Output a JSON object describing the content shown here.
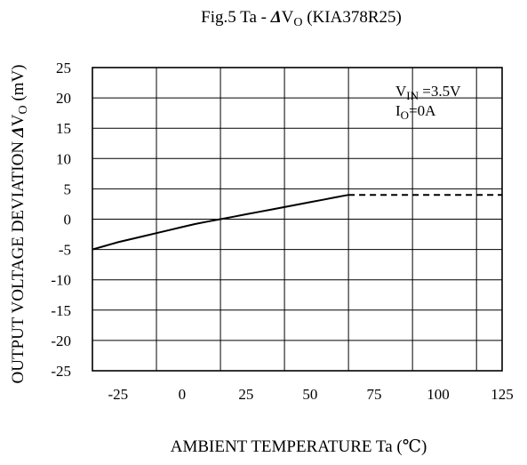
{
  "chart_data": {
    "type": "line",
    "title": {
      "prefix": "Fig.5  Ta - ",
      "delta": "Δ",
      "var": "V",
      "sub": "O",
      "suffix": " (KIA378R25)"
    },
    "xlabel": "AMBIENT TEMPERATURE Ta  (℃)",
    "ylabel": {
      "main": "OUTPUT VOLTAGE DEVIATION  ",
      "delta": "Δ",
      "var": "V",
      "sub": "O",
      "unit": " (mV)"
    },
    "xlim": [
      -35,
      125
    ],
    "ylim": [
      -25,
      25
    ],
    "x_ticks": [
      -25,
      0,
      25,
      50,
      75,
      100,
      125
    ],
    "y_ticks": [
      25,
      20,
      15,
      10,
      5,
      0,
      -5,
      -10,
      -15,
      -20,
      -25
    ],
    "x_gridlines": [
      -10,
      15,
      40,
      65,
      90,
      115
    ],
    "grid": true,
    "series": [
      {
        "style": "solid",
        "x": [
          -35,
          -30,
          -25,
          -20,
          -15,
          -10,
          -5,
          0,
          5,
          10,
          15,
          20,
          25,
          30,
          35,
          40,
          45,
          50,
          55,
          60,
          65
        ],
        "y": [
          -5.0,
          -4.4,
          -3.8,
          -3.3,
          -2.8,
          -2.3,
          -1.8,
          -1.3,
          -0.8,
          -0.4,
          0.0,
          0.4,
          0.8,
          1.2,
          1.6,
          2.0,
          2.4,
          2.8,
          3.2,
          3.6,
          4.0
        ]
      },
      {
        "style": "dashed",
        "x": [
          65,
          125
        ],
        "y": [
          4.0,
          4.0
        ]
      }
    ],
    "annotations": [
      {
        "var": "V",
        "sub": "IN",
        "text": " =3.5V"
      },
      {
        "var": "I",
        "sub": "O",
        "text": "=0A"
      }
    ]
  }
}
